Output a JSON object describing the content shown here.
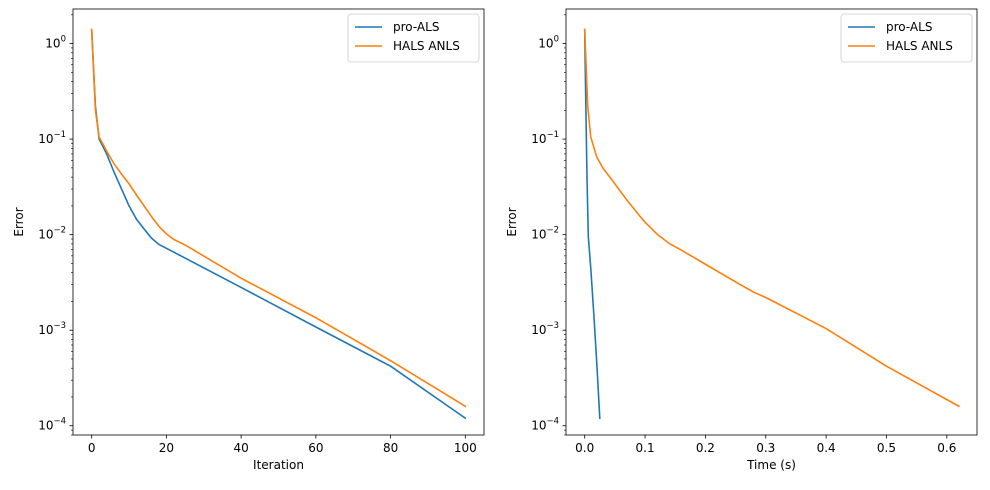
{
  "chart_data": [
    {
      "type": "line",
      "xlabel": "Iteration",
      "ylabel": "Error",
      "yscale": "log",
      "xlim": [
        -5,
        105
      ],
      "ylim": [
        8e-05,
        2.3
      ],
      "xticks": [
        0,
        20,
        40,
        60,
        80,
        100
      ],
      "xtick_labels": [
        "0",
        "20",
        "40",
        "60",
        "80",
        "100"
      ],
      "yticks": [
        0.0001,
        0.001,
        0.01,
        0.1,
        1
      ],
      "ytick_labels": [
        {
          "base": "10",
          "exp": "−4"
        },
        {
          "base": "10",
          "exp": "−3"
        },
        {
          "base": "10",
          "exp": "−2"
        },
        {
          "base": "10",
          "exp": "−1"
        },
        {
          "base": "10",
          "exp": "0"
        }
      ],
      "legend_position": "top-right",
      "grid": false,
      "series": [
        {
          "name": "pro-ALS",
          "color": "#1f77b4",
          "points": [
            [
              0,
              1.4
            ],
            [
              1,
              0.22
            ],
            [
              2,
              0.1
            ],
            [
              4,
              0.07
            ],
            [
              6,
              0.045
            ],
            [
              8,
              0.03
            ],
            [
              10,
              0.02
            ],
            [
              12,
              0.0145
            ],
            [
              14,
              0.0115
            ],
            [
              16,
              0.0092
            ],
            [
              18,
              0.0079
            ],
            [
              20,
              0.0072
            ],
            [
              40,
              0.0028
            ],
            [
              60,
              0.00108
            ],
            [
              80,
              0.00042
            ],
            [
              100,
              0.00012
            ]
          ]
        },
        {
          "name": "HALS ANLS",
          "color": "#ff7f0e",
          "points": [
            [
              0,
              1.4
            ],
            [
              1,
              0.2
            ],
            [
              2,
              0.105
            ],
            [
              4,
              0.075
            ],
            [
              6,
              0.055
            ],
            [
              8,
              0.043
            ],
            [
              10,
              0.034
            ],
            [
              12,
              0.026
            ],
            [
              14,
              0.02
            ],
            [
              16,
              0.0155
            ],
            [
              18,
              0.0122
            ],
            [
              20,
              0.0102
            ],
            [
              22,
              0.0089
            ],
            [
              25,
              0.0078
            ],
            [
              40,
              0.0035
            ],
            [
              60,
              0.00135
            ],
            [
              80,
              0.00048
            ],
            [
              100,
              0.00016
            ]
          ]
        }
      ]
    },
    {
      "type": "line",
      "xlabel": "Time (s)",
      "ylabel": "Error",
      "yscale": "log",
      "xlim": [
        -0.031,
        0.65
      ],
      "ylim": [
        8e-05,
        2.3
      ],
      "xticks": [
        0,
        0.1,
        0.2,
        0.3,
        0.4,
        0.5,
        0.6
      ],
      "xtick_labels": [
        "0.0",
        "0.1",
        "0.2",
        "0.3",
        "0.4",
        "0.5",
        "0.6"
      ],
      "yticks": [
        0.0001,
        0.001,
        0.01,
        0.1,
        1
      ],
      "ytick_labels": [
        {
          "base": "10",
          "exp": "−4"
        },
        {
          "base": "10",
          "exp": "−3"
        },
        {
          "base": "10",
          "exp": "−2"
        },
        {
          "base": "10",
          "exp": "−1"
        },
        {
          "base": "10",
          "exp": "0"
        }
      ],
      "legend_position": "top-right",
      "grid": false,
      "series": [
        {
          "name": "pro-ALS",
          "color": "#1f77b4",
          "points": [
            [
              0.0,
              1.4
            ],
            [
              0.001,
              0.5
            ],
            [
              0.002,
              0.2
            ],
            [
              0.003,
              0.08
            ],
            [
              0.004,
              0.035
            ],
            [
              0.005,
              0.018
            ],
            [
              0.006,
              0.0095
            ],
            [
              0.01,
              0.0045
            ],
            [
              0.015,
              0.0015
            ],
            [
              0.02,
              0.00045
            ],
            [
              0.025,
              0.00012
            ]
          ]
        },
        {
          "name": "HALS ANLS",
          "color": "#ff7f0e",
          "points": [
            [
              0.0,
              1.4
            ],
            [
              0.005,
              0.22
            ],
            [
              0.01,
              0.105
            ],
            [
              0.02,
              0.065
            ],
            [
              0.03,
              0.05
            ],
            [
              0.05,
              0.034
            ],
            [
              0.07,
              0.023
            ],
            [
              0.09,
              0.016
            ],
            [
              0.1,
              0.0135
            ],
            [
              0.12,
              0.0101
            ],
            [
              0.14,
              0.0081
            ],
            [
              0.16,
              0.0069
            ],
            [
              0.2,
              0.0049
            ],
            [
              0.25,
              0.0032
            ],
            [
              0.28,
              0.0025
            ],
            [
              0.3,
              0.0022
            ],
            [
              0.4,
              0.00104
            ],
            [
              0.5,
              0.00042
            ],
            [
              0.62,
              0.00016
            ]
          ]
        }
      ]
    }
  ]
}
